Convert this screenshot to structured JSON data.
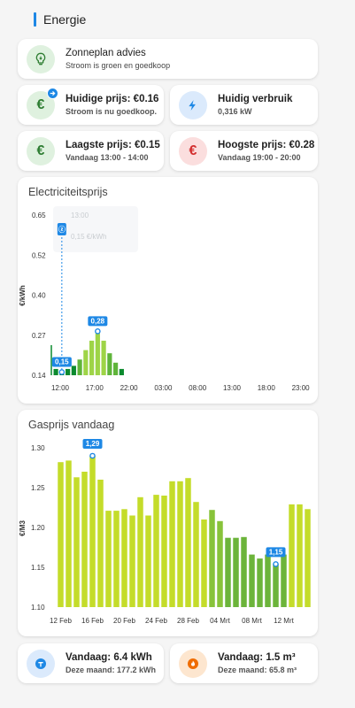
{
  "header": {
    "title": "Energie"
  },
  "colors": {
    "accent": "#1e88e5",
    "green_dark": "#0b8a2e",
    "green_mid": "#6cc13a",
    "green_light": "#a8d94e",
    "lime": "#c4dc2a",
    "lime_dark": "#78b83a",
    "red": "#d32f2f",
    "blue": "#1e88e5",
    "orange": "#ef6c00"
  },
  "advice": {
    "title": "Zonneplan advies",
    "subtitle": "Stroom is groen en goedkoop",
    "icon": "lightbulb-icon"
  },
  "current_price": {
    "title": "Huidige prijs: €0.16",
    "subtitle": "Stroom is nu goedkoop.",
    "icon": "euro-icon",
    "badge_icon": "arrow-right-icon"
  },
  "current_usage": {
    "title": "Huidig verbruik",
    "subtitle": "0,316 kW",
    "icon": "lightning-icon"
  },
  "lowest_price": {
    "title": "Laagste prijs: €0.15",
    "subtitle": "Vandaag 13:00 - 14:00",
    "icon": "euro-icon"
  },
  "highest_price": {
    "title": "Hoogste prijs: €0.28",
    "subtitle": "Vandaag 19:00 - 20:00",
    "icon": "euro-icon"
  },
  "electricity_chart": {
    "title": "Electriciteitsprijs",
    "tooltip_time": "13:00",
    "tooltip_value": "0,15 €/kWh",
    "marker_label": "ⓩ",
    "chart_data": {
      "type": "bar",
      "ylabel": "€/kWh",
      "ylim": [
        0.14,
        0.65
      ],
      "yticks": [
        "0.65",
        "0.52",
        "0.40",
        "0.27",
        "0.14"
      ],
      "xticks": [
        "12:00",
        "17:00",
        "22:00",
        "03:00",
        "08:00",
        "13:00",
        "18:00",
        "23:00"
      ],
      "hours": [
        "12:00",
        "13:00",
        "14:00",
        "15:00",
        "16:00",
        "17:00",
        "18:00",
        "19:00",
        "20:00",
        "21:00",
        "22:00",
        "23:00"
      ],
      "values": [
        0.16,
        0.15,
        0.16,
        0.17,
        0.19,
        0.22,
        0.25,
        0.28,
        0.25,
        0.21,
        0.18,
        0.16
      ],
      "min_label": "0,15",
      "max_label": "0,28",
      "current_hour_index": 1
    }
  },
  "gas_chart": {
    "title": "Gasprijs vandaag",
    "chart_data": {
      "type": "bar",
      "ylabel": "€/M3",
      "ylim": [
        1.1,
        1.3
      ],
      "yticks": [
        "1.30",
        "1.25",
        "1.20",
        "1.15",
        "1.10"
      ],
      "xticks": [
        "12 Feb",
        "16 Feb",
        "20 Feb",
        "24 Feb",
        "28 Feb",
        "04 Mrt",
        "08 Mrt",
        "12 Mrt"
      ],
      "values": [
        1.282,
        1.284,
        1.263,
        1.27,
        1.29,
        1.26,
        1.221,
        1.221,
        1.223,
        1.215,
        1.238,
        1.215,
        1.241,
        1.24,
        1.258,
        1.258,
        1.262,
        1.232,
        1.21,
        1.222,
        1.208,
        1.187,
        1.187,
        1.188,
        1.166,
        1.161,
        1.166,
        1.154,
        1.166,
        1.229,
        1.229,
        1.223
      ],
      "min_label": "1,15",
      "max_label": "1,29",
      "max_index": 4,
      "min_index": 27
    }
  },
  "gas_usage": {
    "title": "Vandaag: 6.4 kWh",
    "subtitle": "Deze maand: 177.2 kWh",
    "icon": "electric-meter-icon"
  },
  "gas_m3": {
    "title": "Vandaag: 1.5 m³",
    "subtitle": "Deze maand: 65.8 m³",
    "icon": "flame-icon"
  }
}
